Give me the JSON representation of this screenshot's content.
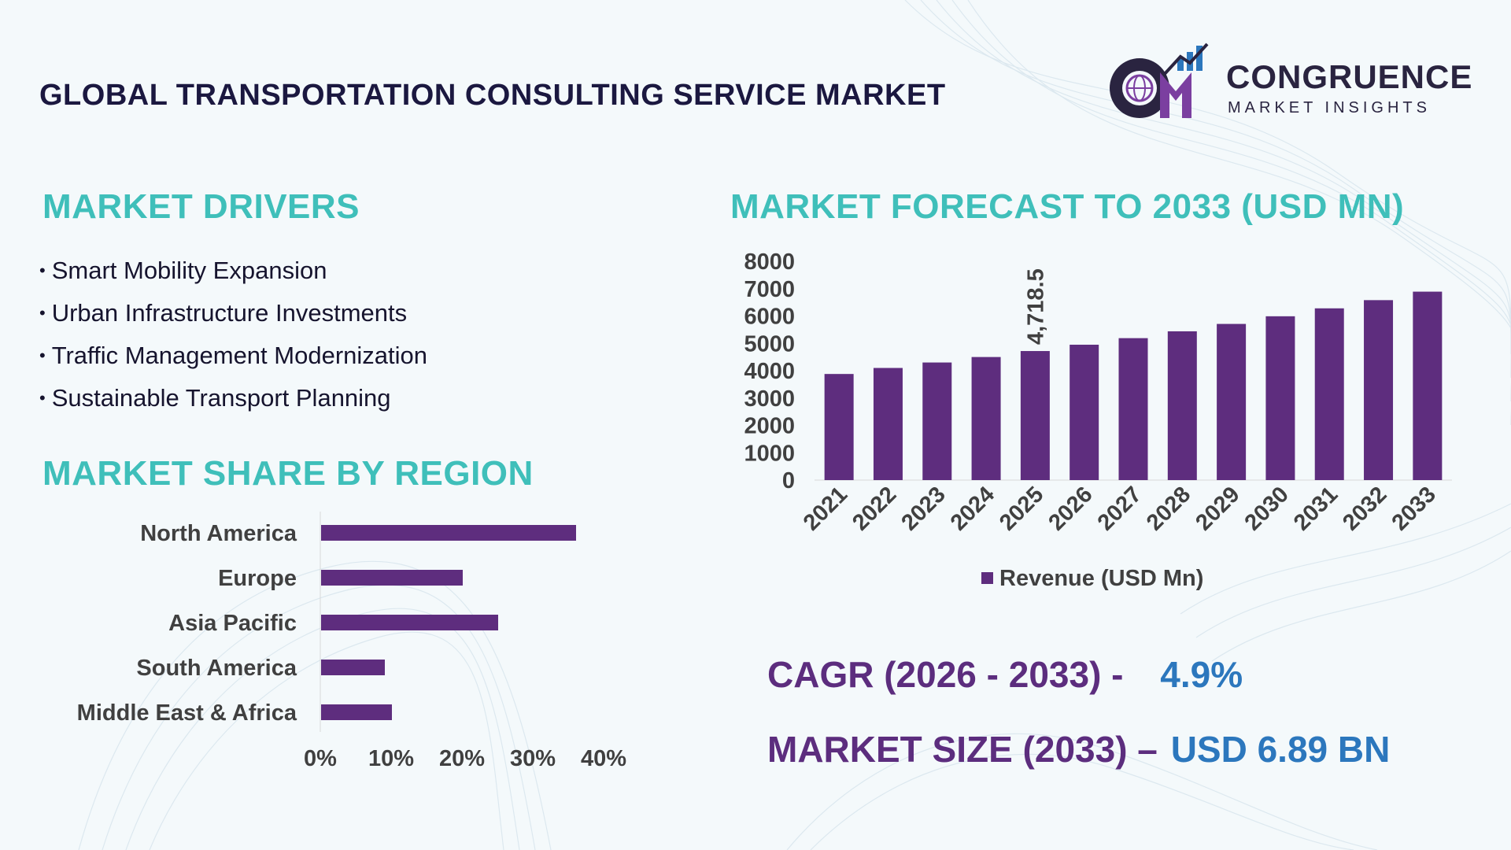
{
  "header": {
    "title": "GLOBAL TRANSPORTATION CONSULTING SERVICE MARKET"
  },
  "logo": {
    "name": "CONGRUENCE",
    "tagline": "MARKET INSIGHTS",
    "icon": "globe-bar-chart-logo"
  },
  "drivers": {
    "title": "MARKET DRIVERS",
    "items": [
      "Smart Mobility Expansion",
      "Urban Infrastructure Investments",
      "Traffic Management Modernization",
      "Sustainable Transport Planning"
    ]
  },
  "region": {
    "title": "MARKET SHARE BY REGION"
  },
  "forecast": {
    "title": "MARKET FORECAST TO 2033 (USD MN)"
  },
  "kpis": {
    "cagr_label": "CAGR (2026 - 2033) -",
    "cagr_value": "4.9%",
    "size_label": "MARKET SIZE (2033) –",
    "size_value": "USD  6.89 BN"
  },
  "colors": {
    "bar": "#5e2d7e",
    "accent_teal": "#3fbfba",
    "title_dark": "#1b1840",
    "kpi_label": "#5c2d7e",
    "kpi_value": "#2c77bd",
    "axis_text": "#404040"
  },
  "chart_data": [
    {
      "type": "bar",
      "orientation": "horizontal",
      "title": "MARKET SHARE BY REGION",
      "categories": [
        "North America",
        "Europe",
        "Asia Pacific",
        "South America",
        "Middle East & Africa"
      ],
      "values": [
        36,
        20,
        25,
        9,
        10
      ],
      "xlim": [
        0,
        40
      ],
      "xticks": [
        "0%",
        "10%",
        "20%",
        "30%",
        "40%"
      ],
      "grid": false,
      "legend": "none"
    },
    {
      "type": "bar",
      "title": "MARKET FORECAST TO 2033 (USD MN)",
      "categories": [
        "2021",
        "2022",
        "2023",
        "2024",
        "2025",
        "2026",
        "2027",
        "2028",
        "2029",
        "2030",
        "2031",
        "2032",
        "2033"
      ],
      "series": [
        {
          "name": "Revenue (USD Mn)",
          "values": [
            3880,
            4100,
            4300,
            4500,
            4718.5,
            4950,
            5190,
            5440,
            5710,
            5990,
            6280,
            6580,
            6890
          ]
        }
      ],
      "annotations": [
        {
          "category": "2025",
          "label": "4,718.5"
        }
      ],
      "ylim": [
        0,
        8000
      ],
      "yticks": [
        "0",
        "1000",
        "2000",
        "3000",
        "4000",
        "5000",
        "6000",
        "7000",
        "8000"
      ],
      "grid": false,
      "legend": "bottom"
    }
  ]
}
